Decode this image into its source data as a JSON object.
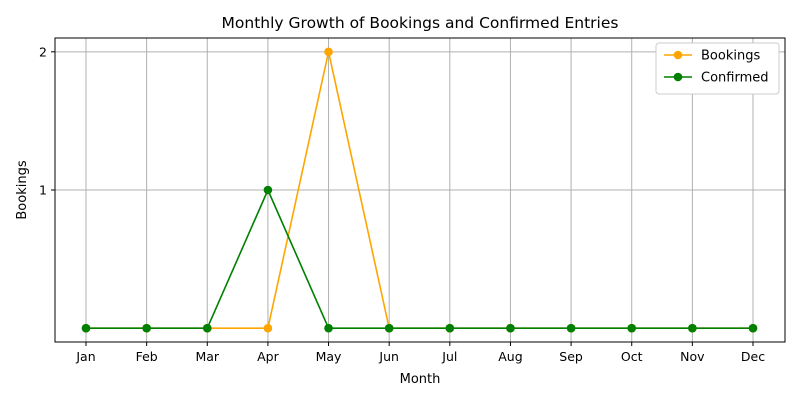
{
  "chart_data": {
    "type": "line",
    "title": "Monthly Growth of Bookings and Confirmed Entries",
    "xlabel": "Month",
    "ylabel": "Bookings",
    "categories": [
      "Jan",
      "Feb",
      "Mar",
      "Apr",
      "May",
      "Jun",
      "Jul",
      "Aug",
      "Sep",
      "Oct",
      "Nov",
      "Dec"
    ],
    "yticks": [
      1,
      2
    ],
    "ylim": [
      -0.1,
      2.1
    ],
    "grid": true,
    "legend_position": "top-right",
    "series": [
      {
        "name": "Bookings",
        "color": "#ffa500",
        "values": [
          0,
          0,
          0,
          0,
          2,
          0,
          0,
          0,
          0,
          0,
          0,
          0
        ]
      },
      {
        "name": "Confirmed",
        "color": "#008000",
        "values": [
          0,
          0,
          0,
          1,
          0,
          0,
          0,
          0,
          0,
          0,
          0,
          0
        ]
      }
    ]
  }
}
